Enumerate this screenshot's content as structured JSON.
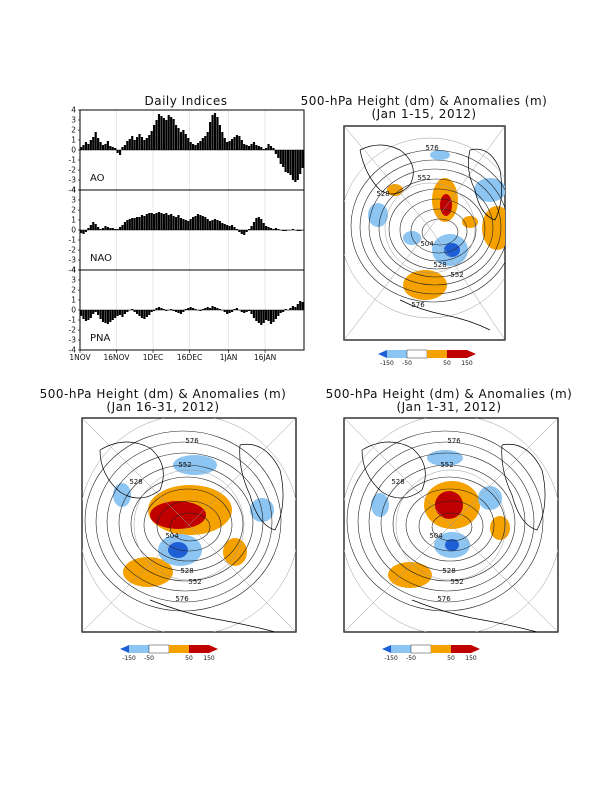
{
  "indices_panel": {
    "title": "Daily Indices",
    "x_tick_labels": [
      "1NOV",
      "16NOV",
      "1DEC",
      "16DEC",
      "1JAN",
      "16JAN"
    ],
    "y_tick_labels": [
      "4",
      "3",
      "2",
      "1",
      "0",
      "-1",
      "-2",
      "-3",
      "-4"
    ]
  },
  "map_panels": [
    {
      "title": "500-hPa Height (dm) & Anomalies (m)",
      "subtitle": "(Jan 1-15, 2012)"
    },
    {
      "title": "500-hPa Height (dm) & Anomalies (m)",
      "subtitle": "(Jan 16-31, 2012)"
    },
    {
      "title": "500-hPa Height (dm) & Anomalies (m)",
      "subtitle": "(Jan 1-31, 2012)"
    }
  ],
  "colorbar": {
    "labels": [
      "-150",
      "-50",
      "50",
      "150"
    ],
    "colors": [
      "#1f5fd6",
      "#8cc4f2",
      "#ffffff",
      "#f5a100",
      "#c00000"
    ]
  },
  "contour_labels": [
    "576",
    "552",
    "528",
    "504",
    "528",
    "552",
    "576"
  ],
  "colors": {
    "bars": "#000000",
    "positive_anomaly": "#f5a100",
    "strong_positive": "#c00000",
    "negative_anomaly": "#8cc4f2",
    "strong_negative": "#1f5fd6"
  },
  "chart_data": [
    {
      "type": "bar",
      "name": "AO",
      "ylim": [
        -4,
        4
      ],
      "x_start": "1NOV",
      "x_end": "31JAN",
      "values": [
        0.3,
        0.5,
        0.8,
        0.6,
        1.0,
        1.3,
        1.8,
        1.2,
        0.8,
        0.5,
        0.6,
        0.9,
        0.4,
        0.3,
        0.2,
        -0.3,
        -0.5,
        0.3,
        0.5,
        0.9,
        1.1,
        1.4,
        1.0,
        1.3,
        1.6,
        1.3,
        1.0,
        1.2,
        1.5,
        1.9,
        2.5,
        3.0,
        3.6,
        3.4,
        3.2,
        3.0,
        3.5,
        3.3,
        3.1,
        2.5,
        2.2,
        1.8,
        2.0,
        1.6,
        1.2,
        0.8,
        0.6,
        0.5,
        0.7,
        0.9,
        1.2,
        1.4,
        1.8,
        2.8,
        3.5,
        3.7,
        3.3,
        2.5,
        1.8,
        1.2,
        0.8,
        0.9,
        1.1,
        1.3,
        1.5,
        1.4,
        1.0,
        0.6,
        0.5,
        0.4,
        0.6,
        0.8,
        0.5,
        0.4,
        0.3,
        0.1,
        0.2,
        0.6,
        0.4,
        0.2,
        -0.4,
        -0.8,
        -1.4,
        -1.7,
        -2.2,
        -2.3,
        -2.5,
        -3.0,
        -3.2,
        -3.0,
        -2.4,
        -1.8
      ]
    },
    {
      "type": "bar",
      "name": "NAO",
      "ylim": [
        -4,
        4
      ],
      "x_start": "1NOV",
      "x_end": "31JAN",
      "values": [
        -0.3,
        -0.4,
        -0.2,
        0.2,
        0.5,
        0.8,
        0.6,
        0.3,
        0.1,
        0.2,
        0.4,
        0.3,
        0.2,
        0.2,
        0.1,
        0.1,
        0.3,
        0.5,
        0.8,
        1.0,
        1.1,
        1.2,
        1.2,
        1.3,
        1.3,
        1.5,
        1.4,
        1.6,
        1.7,
        1.7,
        1.6,
        1.7,
        1.8,
        1.7,
        1.6,
        1.7,
        1.5,
        1.6,
        1.4,
        1.3,
        1.5,
        1.2,
        1.1,
        1.0,
        0.9,
        1.1,
        1.3,
        1.4,
        1.6,
        1.5,
        1.4,
        1.3,
        1.1,
        0.9,
        1.0,
        1.1,
        1.0,
        0.9,
        0.7,
        0.6,
        0.5,
        0.4,
        0.5,
        0.3,
        0.1,
        -0.2,
        -0.4,
        -0.5,
        -0.2,
        0.1,
        0.4,
        0.8,
        1.2,
        1.3,
        1.1,
        0.7,
        0.4,
        0.3,
        0.2,
        0.1,
        0.2,
        0.1,
        0.0,
        -0.1,
        -0.1,
        0.0,
        0.0,
        0.1,
        0.0,
        -0.1,
        -0.1,
        0.0
      ]
    },
    {
      "type": "bar",
      "name": "PNA",
      "ylim": [
        -4,
        4
      ],
      "x_start": "1NOV",
      "x_end": "31JAN",
      "values": [
        -0.6,
        -0.9,
        -1.1,
        -1.0,
        -0.8,
        -0.4,
        -0.2,
        -0.5,
        -0.9,
        -1.2,
        -1.3,
        -1.4,
        -1.2,
        -1.0,
        -0.8,
        -0.6,
        -0.5,
        -0.7,
        -0.4,
        -0.2,
        0.0,
        0.1,
        -0.2,
        -0.4,
        -0.6,
        -0.8,
        -0.9,
        -0.7,
        -0.5,
        -0.2,
        -0.1,
        0.2,
        0.3,
        0.2,
        0.1,
        -0.1,
        0.0,
        0.1,
        -0.1,
        -0.2,
        -0.3,
        -0.4,
        -0.2,
        0.1,
        0.2,
        0.3,
        0.2,
        0.1,
        0.0,
        -0.1,
        0.1,
        0.2,
        0.3,
        0.2,
        0.4,
        0.3,
        0.2,
        0.1,
        0.0,
        -0.2,
        -0.4,
        -0.3,
        -0.2,
        0.1,
        0.2,
        0.0,
        -0.2,
        -0.3,
        -0.2,
        -0.1,
        -0.4,
        -0.8,
        -1.1,
        -1.3,
        -1.5,
        -1.3,
        -1.0,
        -1.1,
        -1.4,
        -1.2,
        -0.9,
        -0.6,
        -0.3,
        -0.2,
        0.1,
        0.0,
        0.2,
        0.4,
        0.3,
        0.6,
        0.9,
        0.8
      ]
    }
  ]
}
